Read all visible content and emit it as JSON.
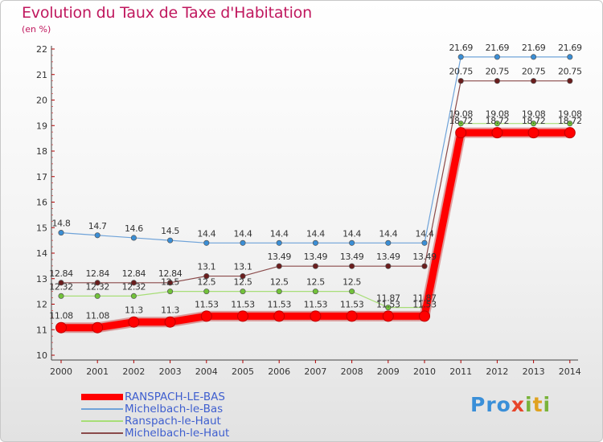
{
  "header": {
    "title": "Evolution du Taux de Taxe d'Habitation",
    "unit": "(en %)"
  },
  "logo": {
    "text": "Proxiti"
  },
  "chart_data": {
    "type": "line",
    "x": [
      "2000",
      "2001",
      "2002",
      "2003",
      "2004",
      "2005",
      "2006",
      "2007",
      "2008",
      "2009",
      "2010",
      "2011",
      "2012",
      "2013",
      "2014"
    ],
    "ylim": [
      10,
      22
    ],
    "yticks": [
      10,
      11,
      12,
      13,
      14,
      15,
      16,
      17,
      18,
      19,
      20,
      21,
      22
    ],
    "grid": false,
    "legend_position": "bottom-left",
    "series": [
      {
        "name": "RANSPACH-LE-BAS",
        "color": "#ff0000",
        "marker_color": "#ff0000",
        "values": [
          11.08,
          11.08,
          11.3,
          11.3,
          11.53,
          11.53,
          11.53,
          11.53,
          11.53,
          11.53,
          11.53,
          18.72,
          18.72,
          18.72,
          18.72
        ],
        "labels": [
          "11.08",
          "11.08",
          "11.3",
          "11.3",
          "11.53",
          "11.53",
          "11.53",
          "11.53",
          "11.53",
          "11.53",
          "11.53",
          "18.72",
          "18.72",
          "18.72",
          "18.72"
        ],
        "thick": true
      },
      {
        "name": "Michelbach-le-Bas",
        "color": "#6fa3d9",
        "marker_color": "#3a8ed5",
        "values": [
          14.8,
          14.7,
          14.6,
          14.5,
          14.4,
          14.4,
          14.4,
          14.4,
          14.4,
          14.4,
          14.4,
          21.69,
          21.69,
          21.69,
          21.69
        ],
        "labels": [
          "14.8",
          "14.7",
          "14.6",
          "14.5",
          "14.4",
          "14.4",
          "14.4",
          "14.4",
          "14.4",
          "14.4",
          "14.4",
          "21.69",
          "21.69",
          "21.69",
          "21.69"
        ],
        "thick": false
      },
      {
        "name": "Ranspach-le-Haut",
        "color": "#a7de77",
        "marker_color": "#72c23a",
        "values": [
          12.32,
          12.32,
          12.32,
          12.5,
          12.5,
          12.5,
          12.5,
          12.5,
          12.5,
          11.87,
          11.87,
          19.08,
          19.08,
          19.08,
          19.08
        ],
        "labels": [
          "12.32",
          "12.32",
          "12.32",
          "12.5",
          "12.5",
          "12.5",
          "12.5",
          "12.5",
          "12.5",
          "11.87",
          "11.87",
          "19.08",
          "19.08",
          "19.08",
          "19.08"
        ],
        "thick": false
      },
      {
        "name": "Michelbach-le-Haut",
        "color": "#8a4a4a",
        "marker_color": "#6b1d1d",
        "values": [
          12.84,
          12.84,
          12.84,
          12.84,
          13.1,
          13.1,
          13.49,
          13.49,
          13.49,
          13.49,
          13.49,
          20.75,
          20.75,
          20.75,
          20.75
        ],
        "labels": [
          "12.84",
          "12.84",
          "12.84",
          "12.84",
          "13.1",
          "13.1",
          "13.49",
          "13.49",
          "13.49",
          "13.49",
          "13.49",
          "20.75",
          "20.75",
          "20.75",
          "20.75"
        ],
        "thick": false
      }
    ]
  }
}
